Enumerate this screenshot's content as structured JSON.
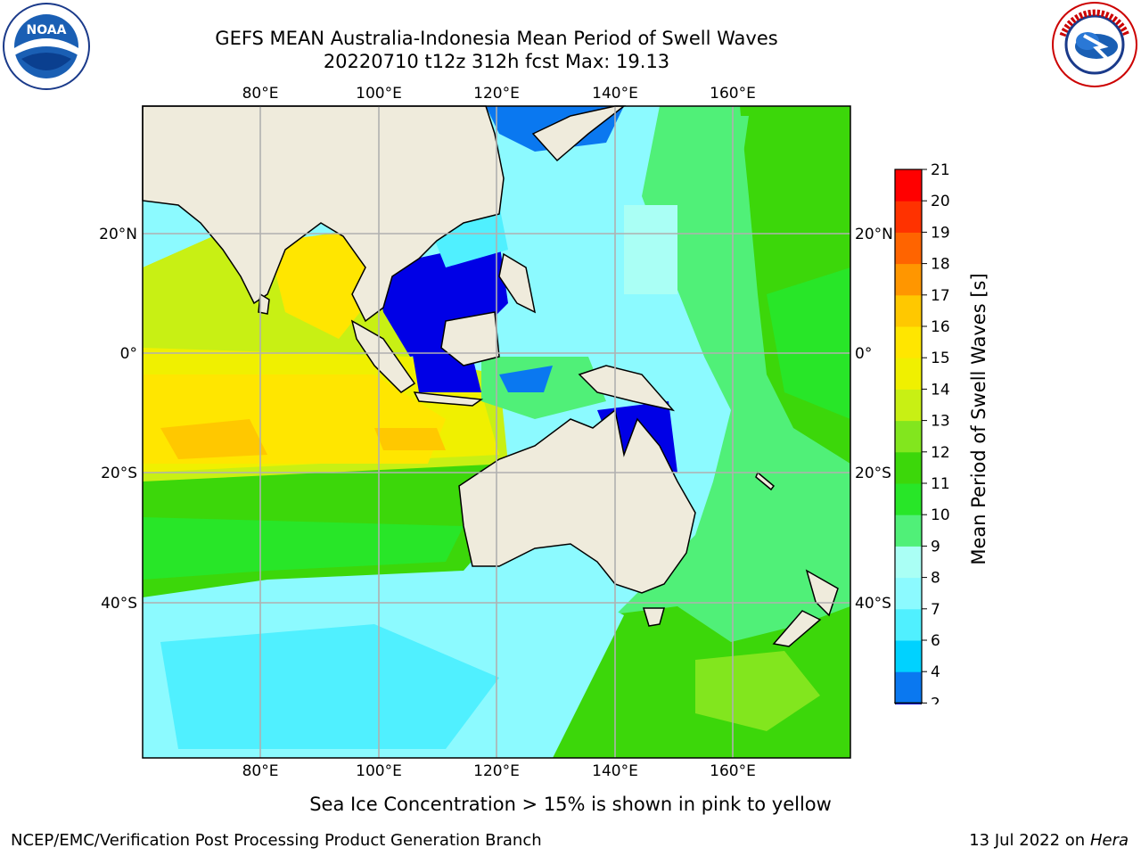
{
  "title_line1": "GEFS MEAN Australia-Indonesia Mean Period of Swell Waves",
  "title_line2": "20220710 t12z 312h fcst   Max: 19.13",
  "logos": {
    "left": "noaa-logo",
    "right": "nws-logo"
  },
  "map": {
    "lon_range": [
      60,
      180
    ],
    "lat_range": [
      -70,
      40
    ],
    "lon_ticks": [
      {
        "value": 80,
        "label": "80°E"
      },
      {
        "value": 100,
        "label": "100°E"
      },
      {
        "value": 120,
        "label": "120°E"
      },
      {
        "value": 140,
        "label": "140°E"
      },
      {
        "value": 160,
        "label": "160°E"
      }
    ],
    "lat_ticks": [
      {
        "value": 20,
        "label": "20°N"
      },
      {
        "value": 0,
        "label": "0°"
      },
      {
        "value": -20,
        "label": "20°S"
      },
      {
        "value": -40,
        "label": "40°S"
      }
    ],
    "land_color": "#efebdc",
    "grid": true
  },
  "colorbar": {
    "label": "Mean Period of Swell Waves [s]",
    "levels": [
      2,
      4,
      6,
      7,
      8,
      9,
      10,
      11,
      12,
      13,
      14,
      15,
      16,
      17,
      18,
      19,
      20,
      21
    ],
    "tick_labels": [
      "2",
      "4",
      "6",
      "7",
      "8",
      "9",
      "10",
      "11",
      "12",
      "13",
      "14",
      "15",
      "16",
      "17",
      "18",
      "19",
      "20",
      "21"
    ],
    "colors": [
      "#0a78f0",
      "#00d2ff",
      "#50f0ff",
      "#8cfaff",
      "#aafff5",
      "#50f078",
      "#28e628",
      "#3cd70a",
      "#82e61e",
      "#c8f014",
      "#f0f000",
      "#ffe600",
      "#ffc800",
      "#ff9600",
      "#ff6400",
      "#ff3200",
      "#ff0000"
    ],
    "under_color": "#0000e6"
  },
  "note": "Sea Ice Concentration > 15% is shown in pink to yellow",
  "footer_left": "NCEP/EMC/Verification Post Processing Product Generation Branch",
  "footer_right_date": "13 Jul 2022 on ",
  "footer_right_host": "Hera"
}
